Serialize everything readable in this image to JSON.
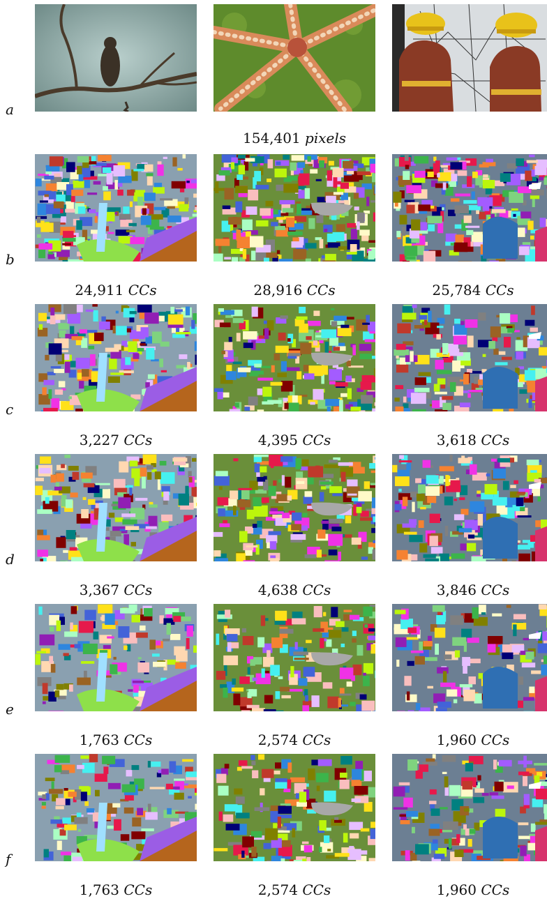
{
  "rows": [
    {
      "label": "a",
      "kind": "photo"
    },
    {
      "label": "b",
      "kind": "seg",
      "captions": [
        "24,911",
        "28,916",
        "25,784"
      ]
    },
    {
      "label": "c",
      "kind": "seg",
      "captions": [
        "3,227",
        "4,395",
        "3,618"
      ]
    },
    {
      "label": "d",
      "kind": "seg",
      "captions": [
        "3,367",
        "4,638",
        "3,846"
      ]
    },
    {
      "label": "e",
      "kind": "seg",
      "captions": [
        "1,763",
        "2,574",
        "1,960"
      ]
    },
    {
      "label": "f",
      "kind": "seg",
      "captions": [
        "1,763",
        "2,574",
        "1,960"
      ]
    }
  ],
  "pixels_caption": {
    "value": "154,401",
    "unit": "pixels"
  },
  "cc_unit": "CCs",
  "images": [
    "hawk-on-branch",
    "red-starfish",
    "firefighters-at-map"
  ],
  "colors": {
    "sky": "#9fb8b6",
    "branch": "#5a4632",
    "moss": "#5e8b2c",
    "starfish": "#d98a5a",
    "helmet": "#e8c21a",
    "jacket": "#8a3a25",
    "map": "#d9dde0"
  }
}
